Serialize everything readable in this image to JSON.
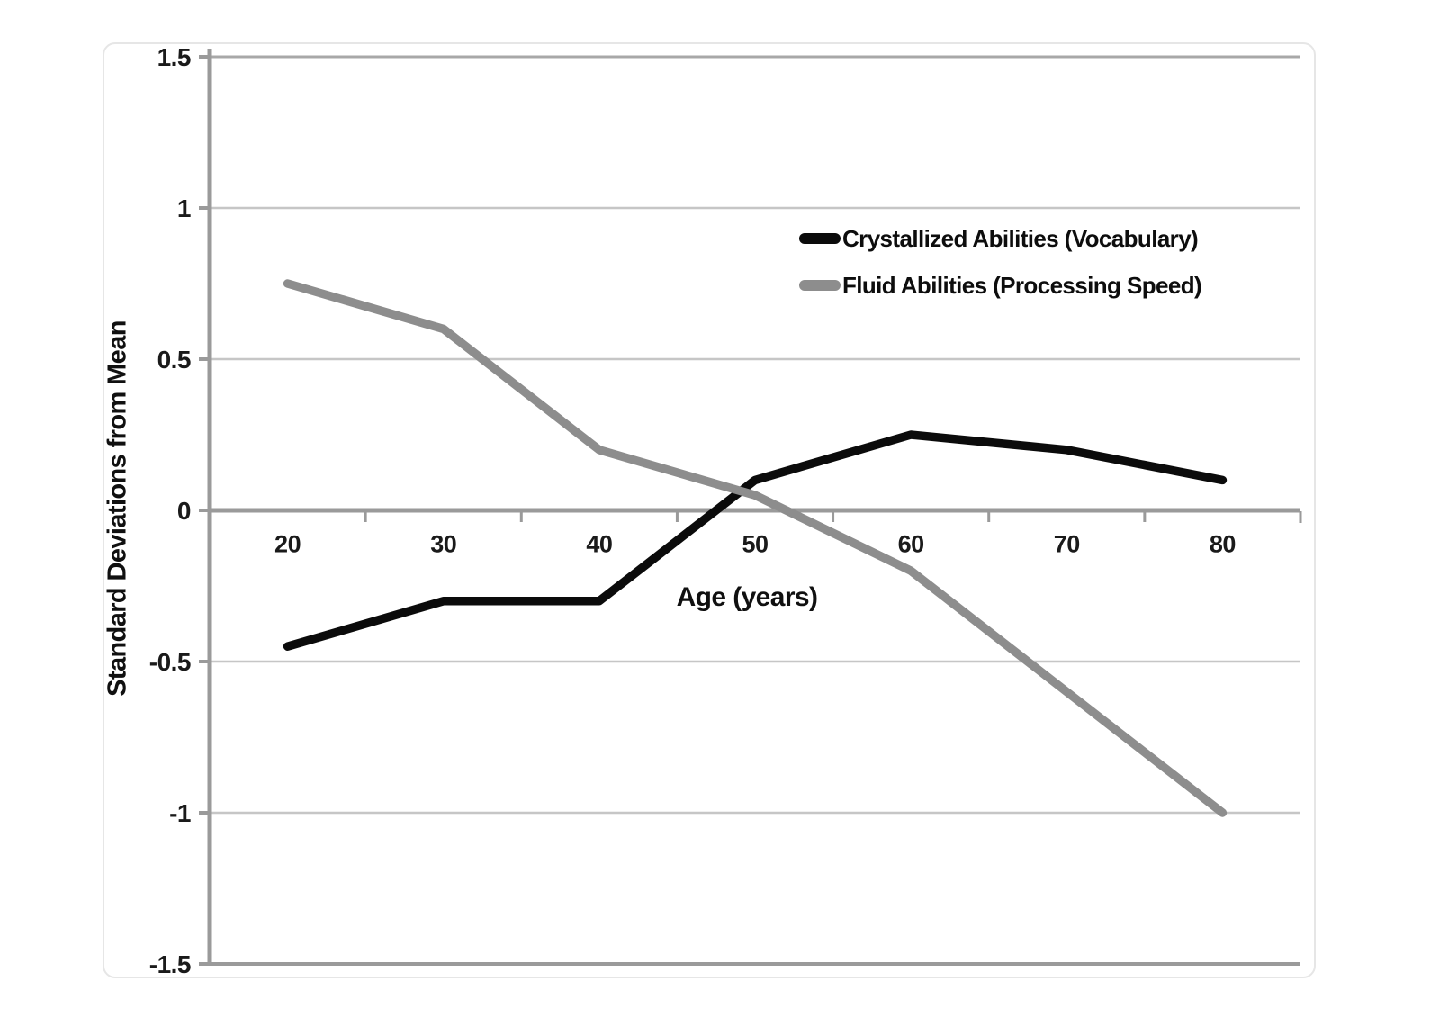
{
  "figure": {
    "x_axis_title": "Age (years)",
    "y_axis_title": "Standard Deviations from Mean"
  },
  "legend": [
    {
      "label": "Crystallized Abilities (Vocabulary)",
      "color": "#0b0b0b"
    },
    {
      "label": "Fluid Abilities (Processing Speed)",
      "color": "#8d8d8d"
    }
  ],
  "colors": {
    "axis": "#9a9a9a",
    "gridline": "#c6c6c6",
    "grid_top": "#a8a8a8",
    "grid_bottom": "#9a9a9a",
    "text": "#1a1a1a",
    "card_border": "#e6e6e6",
    "background": "#ffffff",
    "series_black": "#0b0b0b",
    "series_gray": "#8d8d8d"
  },
  "chart_data": {
    "type": "line",
    "title": "",
    "xlabel": "Age (years)",
    "ylabel": "Standard Deviations from Mean",
    "categories": [
      20,
      30,
      40,
      50,
      60,
      70,
      80
    ],
    "xtick_labels": [
      "20",
      "30",
      "40",
      "50",
      "60",
      "70",
      "80"
    ],
    "series": [
      {
        "name": "Crystallized Abilities (Vocabulary)",
        "color": "#0b0b0b",
        "values": [
          -0.45,
          -0.3,
          -0.3,
          0.1,
          0.25,
          0.2,
          0.1
        ]
      },
      {
        "name": "Fluid Abilities (Processing Speed)",
        "color": "#8d8d8d",
        "values": [
          0.75,
          0.6,
          0.2,
          0.05,
          -0.2,
          -0.6,
          -1.0
        ]
      }
    ],
    "ylim": [
      -1.5,
      1.5
    ],
    "yticks": [
      1.5,
      1,
      0.5,
      0,
      -0.5,
      -1,
      -1.5
    ],
    "ytick_labels": [
      "1.5",
      "1",
      "0.5",
      "0",
      "-0.5",
      "-1",
      "-1.5"
    ],
    "x_axis_range": [
      15,
      85
    ],
    "grid": "horizontal-only",
    "legend_position": "inside-top-right"
  }
}
